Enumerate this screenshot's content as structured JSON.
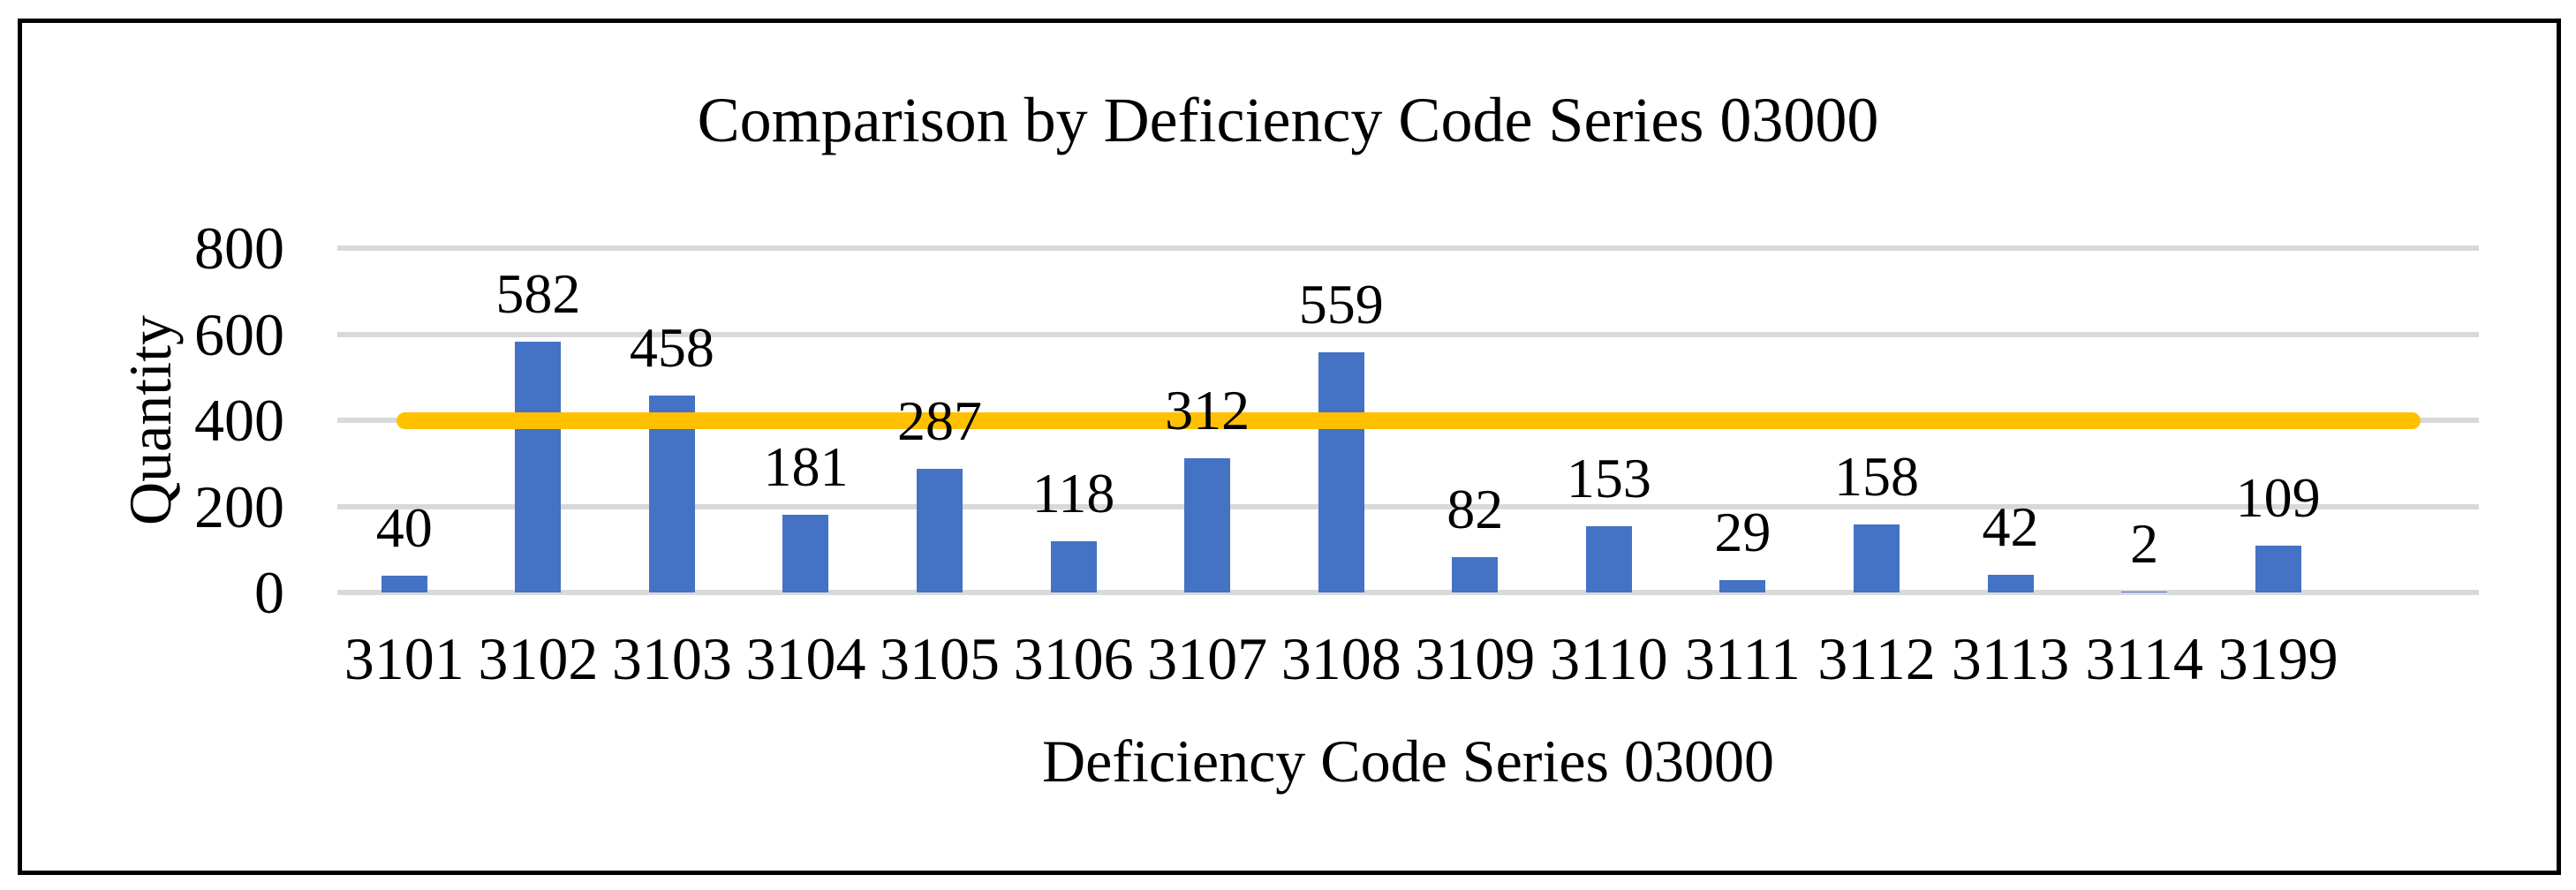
{
  "chart_data": {
    "type": "bar",
    "title": "Comparison by Deficiency Code Series 03000",
    "xlabel": "Deficiency Code Series 03000",
    "ylabel": "Quantity",
    "categories": [
      "3101",
      "3102",
      "3103",
      "3104",
      "3105",
      "3106",
      "3107",
      "3108",
      "3109",
      "3110",
      "3111",
      "3112",
      "3113",
      "3114",
      "3199"
    ],
    "values": [
      40,
      582,
      458,
      181,
      287,
      118,
      312,
      559,
      82,
      153,
      29,
      158,
      42,
      2,
      109
    ],
    "data_labels": [
      "40",
      "582",
      "458",
      "181",
      "287",
      "118",
      "312",
      "559",
      "82",
      "153",
      "29",
      "158",
      "42",
      "2",
      "109"
    ],
    "ylim": [
      0,
      800
    ],
    "yticks": [
      "0",
      "200",
      "400",
      "600",
      "800"
    ],
    "ytick_values": [
      0,
      200,
      400,
      600,
      800
    ],
    "grid": true,
    "legend_position": "none",
    "reference_line": {
      "value": 400,
      "color": "#FFC000"
    },
    "bar_color": "#4472C4",
    "gridline_color": "#D9D9D9",
    "text_color": "#000000",
    "border_color": "#000000"
  }
}
